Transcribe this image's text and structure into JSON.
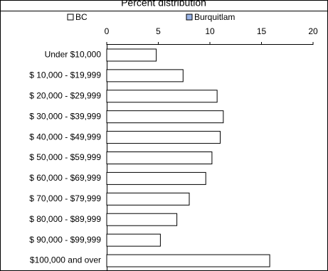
{
  "chart_data": {
    "type": "bar",
    "orientation": "horizontal",
    "title": "Percent distribution",
    "categories": [
      "Under $10,000",
      "$ 10,000 - $19,999",
      "$ 20,000 - $29,999",
      "$ 30,000 - $39,999",
      "$ 40,000 - $49,999",
      "$ 50,000 - $59,999",
      "$ 60,000 - $69,999",
      "$ 70,000 - $79,999",
      "$ 80,000 - $89,999",
      "$ 90,000 - $99,999",
      "$100,000 and over"
    ],
    "series": [
      {
        "name": "BC",
        "color": "#ffffff",
        "values": [
          4.8,
          7.4,
          10.7,
          11.3,
          11.0,
          10.2,
          9.6,
          8.0,
          6.8,
          5.2,
          15.8
        ]
      },
      {
        "name": "Burquitlam",
        "color": "#99b3e6",
        "values": [
          null,
          null,
          null,
          null,
          null,
          null,
          null,
          null,
          null,
          null,
          null
        ]
      }
    ],
    "xlim": [
      0,
      20
    ],
    "xticks": [
      0,
      5,
      10,
      15,
      20
    ]
  }
}
